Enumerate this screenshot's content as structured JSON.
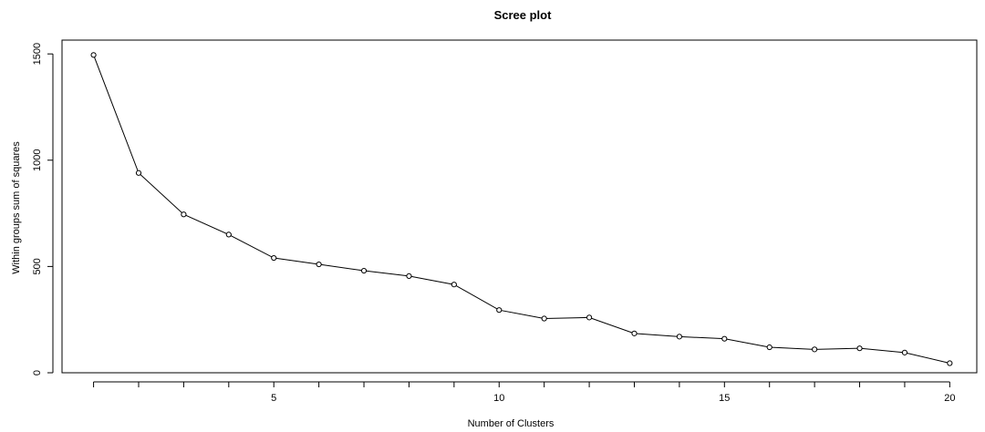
{
  "chart_data": {
    "type": "line",
    "title": "Scree plot",
    "xlabel": "Number of Clusters",
    "ylabel": "Within groups sum of squares",
    "x": [
      1,
      2,
      3,
      4,
      5,
      6,
      7,
      8,
      9,
      10,
      11,
      12,
      13,
      14,
      15,
      16,
      17,
      18,
      19,
      20
    ],
    "y": [
      1495,
      940,
      745,
      650,
      540,
      510,
      480,
      455,
      415,
      295,
      255,
      260,
      185,
      170,
      160,
      120,
      110,
      115,
      95,
      45
    ],
    "xlim": [
      0.3,
      20.6
    ],
    "ylim": [
      0,
      1565
    ],
    "xticks": [
      5,
      10,
      15,
      20
    ],
    "yticks": [
      0,
      500,
      1000,
      1500
    ],
    "xtick_labels": [
      "5",
      "10",
      "15",
      "20"
    ],
    "ytick_labels": [
      "0",
      "500",
      "1000",
      "1500"
    ],
    "markers": "open-circle",
    "line_color": "#000000",
    "grid": false
  }
}
